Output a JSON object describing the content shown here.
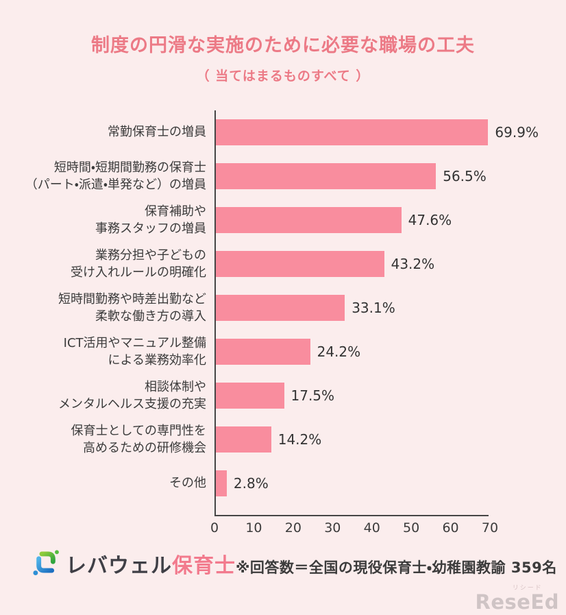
{
  "title": "制度の円滑な実施のために必要な職場の工夫",
  "subtitle": "（ 当てはまるものすべて ）",
  "chart_data": {
    "type": "bar",
    "orientation": "horizontal",
    "title": "制度の円滑な実施のために必要な職場の工夫（当てはまるものすべて）",
    "categories": [
      "常勤保育士の増員",
      "短時間・短期間勤務の保育士\n（パート・派遣・単発など）の増員",
      "保育補助や\n事務スタッフの増員",
      "業務分担や子どもの\n受け入れルールの明確化",
      "短時間勤務や時差出勤など\n柔軟な働き方の導入",
      "ICT活用やマニュアル整備\nによる業務効率化",
      "相談体制や\nメンタルヘルス支援の充実",
      "保育士としての専門性を\n高めるための研修機会",
      "その他"
    ],
    "values": [
      69.9,
      56.5,
      47.6,
      43.2,
      33.1,
      24.2,
      17.5,
      14.2,
      2.8
    ],
    "value_labels": [
      "69.9%",
      "56.5%",
      "47.6%",
      "43.2%",
      "33.1%",
      "24.2%",
      "17.5%",
      "14.2%",
      "2.8%"
    ],
    "xlabel": "",
    "ylabel": "",
    "xlim": [
      0,
      70
    ],
    "xticks": [
      0,
      10,
      20,
      30,
      40,
      50,
      60,
      70
    ],
    "grid": false,
    "legend": false
  },
  "footer": {
    "logo": {
      "brand": "レバウェル",
      "product": "保育士"
    },
    "note": "※回答数＝全国の現役保育士・幼稚園教諭 359名"
  },
  "watermark": {
    "ruby": "リシード",
    "text": "ReseEd"
  },
  "colors": {
    "background": "#FBEDED",
    "title": "#EC7A86",
    "bar": "#F98D9E",
    "axis": "#454545",
    "text": "#3B3B3B",
    "logo_pink": "#F27A8D",
    "logo_dark": "#3F3F46",
    "watermark": "#CFC4C5"
  }
}
